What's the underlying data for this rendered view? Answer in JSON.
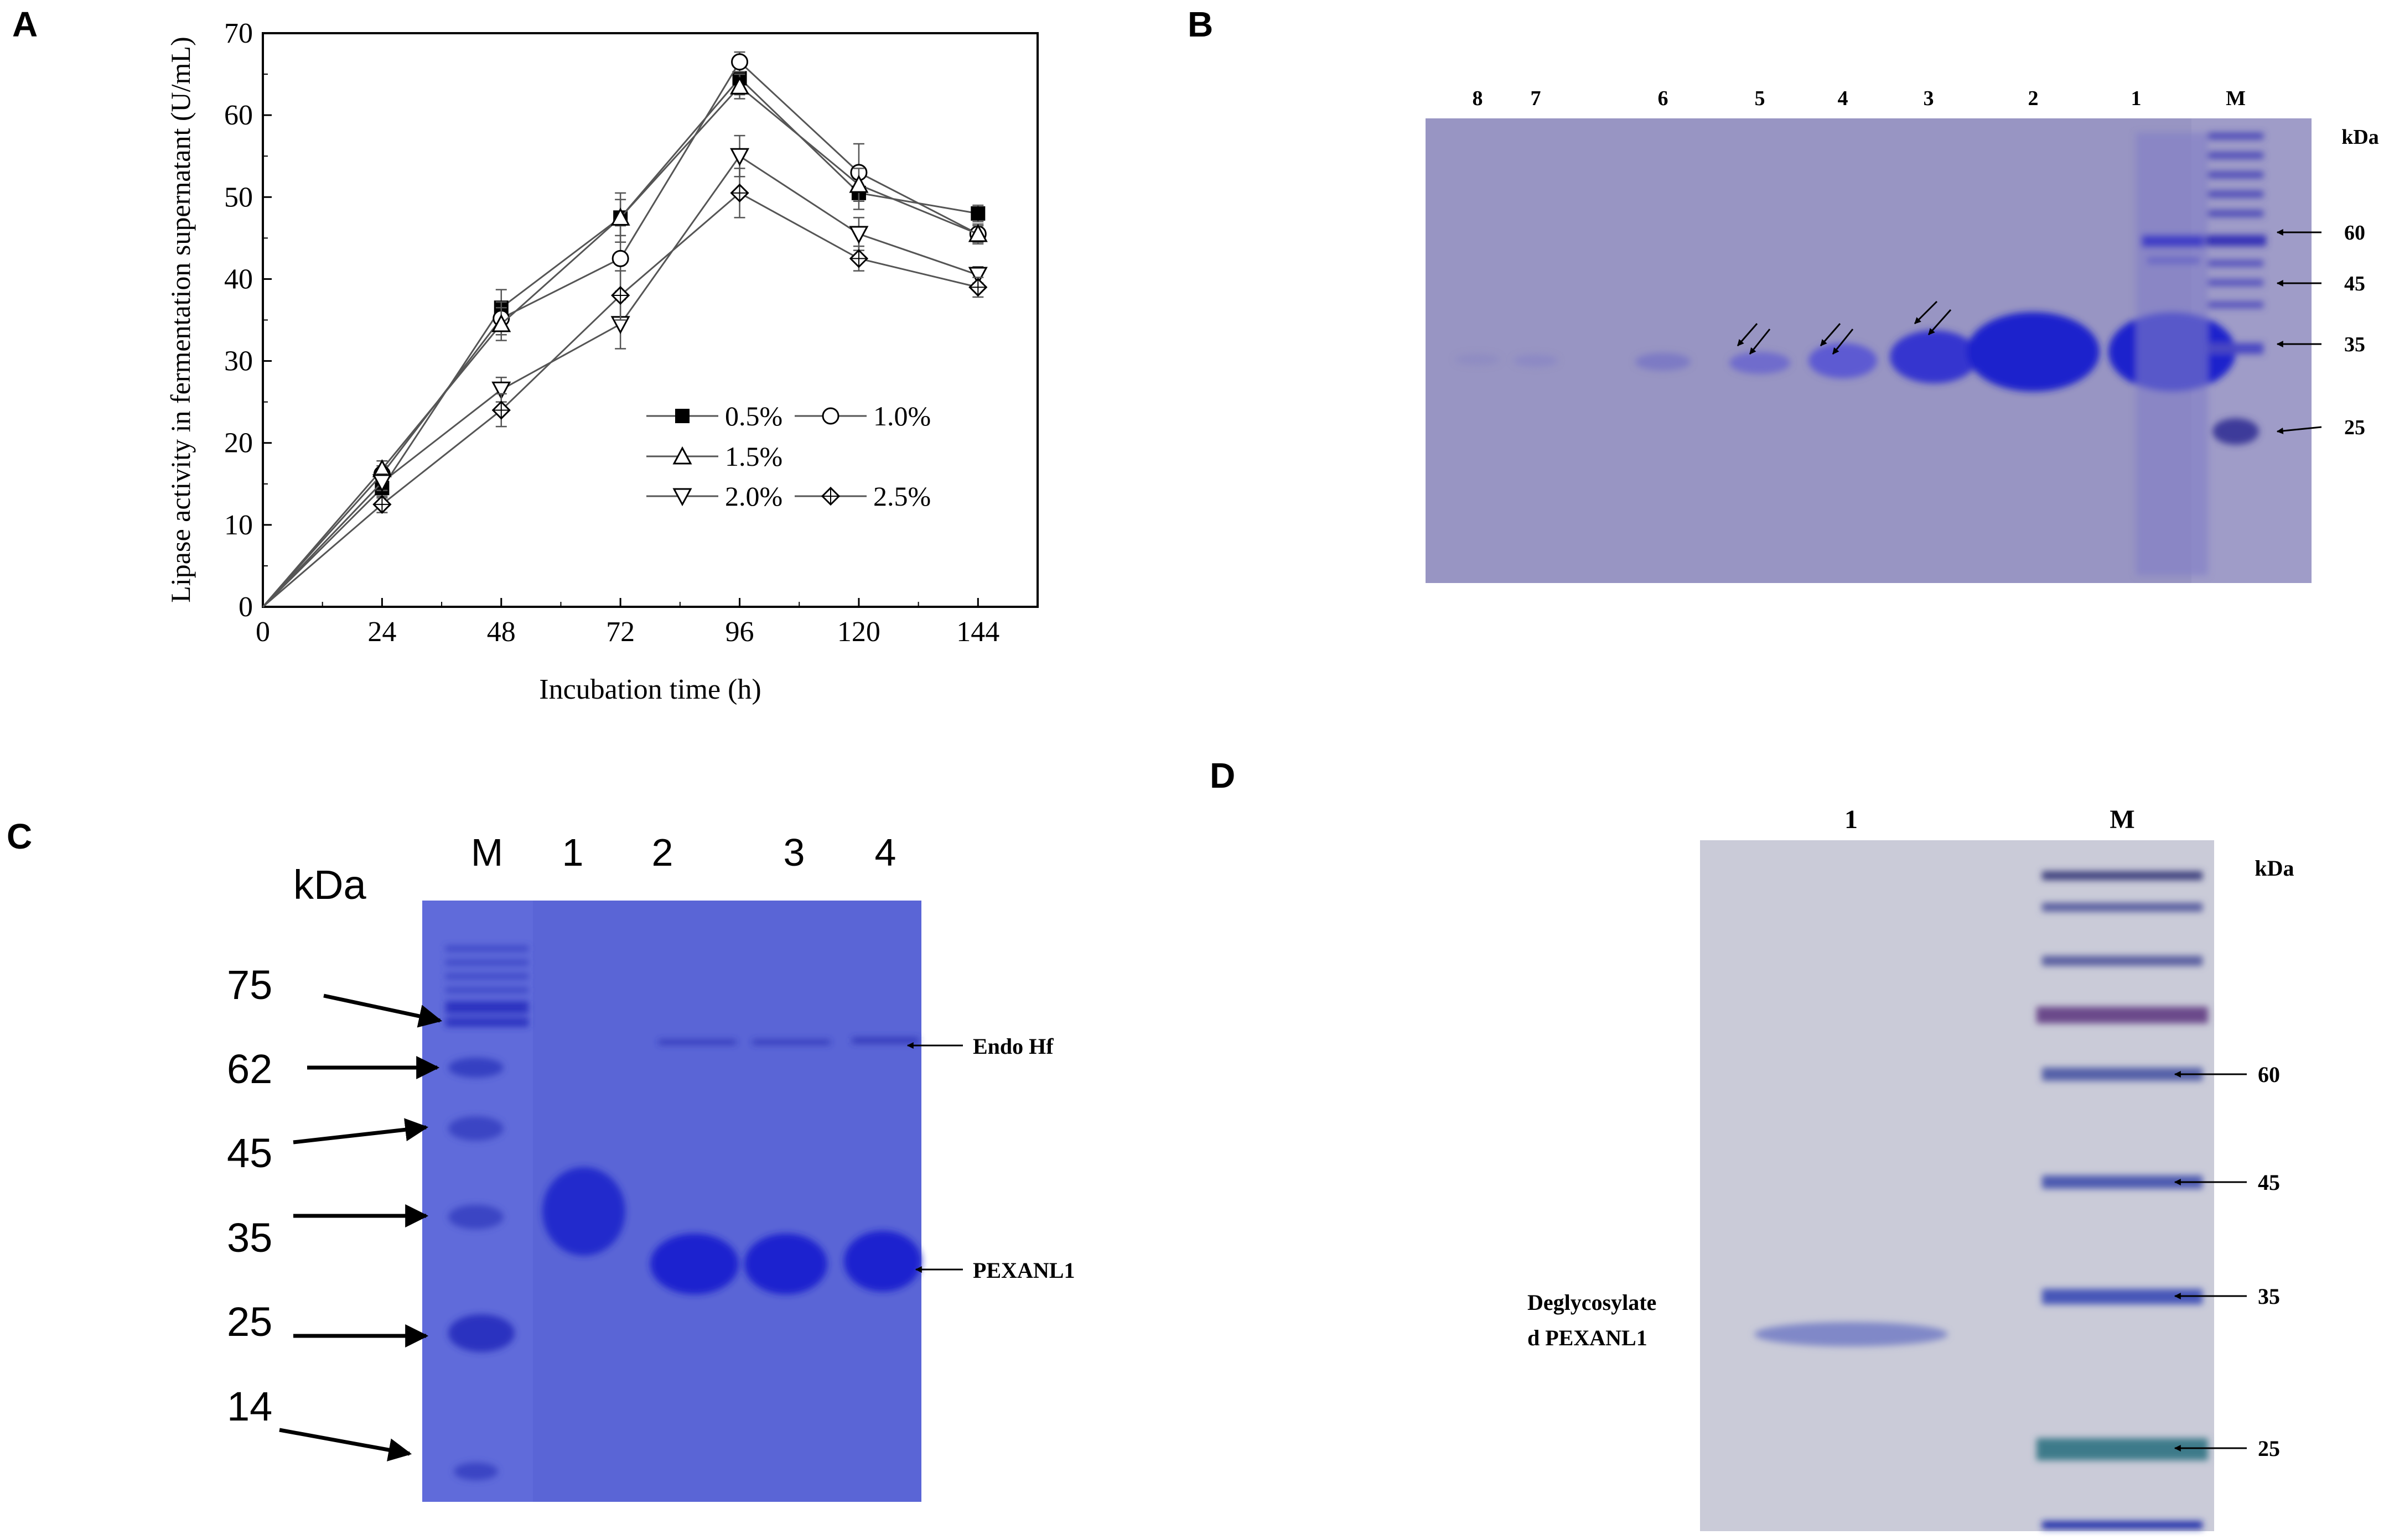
{
  "panels": {
    "A": {
      "letter": "A"
    },
    "B": {
      "letter": "B"
    },
    "C": {
      "letter": "C"
    },
    "D": {
      "letter": "D"
    }
  },
  "chart_data": {
    "type": "line",
    "xlabel": "Incubation time (h)",
    "ylabel": "Lipase activity in fermentation supernatant (U/mL)",
    "x": [
      0,
      24,
      48,
      72,
      96,
      120,
      144
    ],
    "xlim": [
      0,
      156
    ],
    "ylim": [
      0,
      70
    ],
    "x_ticks": [
      "0",
      "24",
      "48",
      "72",
      "96",
      "120",
      "144"
    ],
    "y_ticks": [
      "0",
      "10",
      "20",
      "30",
      "40",
      "50",
      "60",
      "70"
    ],
    "legend_position": "bottom-right inside",
    "series": [
      {
        "name": "0.5%",
        "marker": "filled-square",
        "values": [
          0,
          14.5,
          36.5,
          47.5,
          64.5,
          50.5,
          48
        ],
        "errors": [
          0,
          1.2,
          2.2,
          3.0,
          2.0,
          2.0,
          1.0
        ]
      },
      {
        "name": "1.0%",
        "marker": "open-circle",
        "values": [
          0,
          16.2,
          35.2,
          42.5,
          66.5,
          53,
          45.5
        ],
        "errors": [
          0,
          1.0,
          2.0,
          4.0,
          1.2,
          3.5,
          1.2
        ]
      },
      {
        "name": "1.5%",
        "marker": "open-triangle-up",
        "values": [
          0,
          16.8,
          34.5,
          47.5,
          63.5,
          51.5,
          45.5
        ],
        "errors": [
          0,
          1.0,
          2.0,
          2.2,
          1.5,
          2.0,
          1.0
        ]
      },
      {
        "name": "2.0%",
        "marker": "open-triangle-down",
        "values": [
          0,
          15.2,
          26.5,
          34.5,
          55,
          45.5,
          40.5
        ],
        "errors": [
          0,
          1.0,
          1.5,
          3.0,
          2.5,
          2.0,
          1.0
        ]
      },
      {
        "name": "2.5%",
        "marker": "open-diamond-cross",
        "values": [
          0,
          12.5,
          24,
          38,
          50.5,
          42.5,
          39
        ],
        "errors": [
          0,
          1.0,
          2.0,
          3.0,
          3.0,
          1.5,
          1.2
        ]
      }
    ]
  },
  "gelB": {
    "lane_labels": [
      "8",
      "7",
      "6",
      "5",
      "4",
      "3",
      "2",
      "1",
      "M"
    ],
    "unit": "kDa",
    "markers": [
      "60",
      "45",
      "35",
      "25"
    ]
  },
  "gelC": {
    "lane_labels": [
      "M",
      "1",
      "2",
      "3",
      "4"
    ],
    "unit": "kDa",
    "markers": [
      "75",
      "62",
      "45",
      "35",
      "25",
      "14"
    ],
    "annotations": [
      "Endo Hf",
      "PEXANL1"
    ]
  },
  "gelD": {
    "lane_labels": [
      "1",
      "M"
    ],
    "unit": "kDa",
    "markers": [
      "60",
      "45",
      "35",
      "25"
    ],
    "annotation_line1": "Deglycosylate",
    "annotation_line2": "d PEXANL1"
  },
  "colors": {
    "gel_b_bg": "#9a97c4",
    "gel_c_bg": "#5b66d8",
    "gel_d_bg": "#c9cbd8",
    "band_dark": "#1d22c4",
    "ink": "#000000"
  }
}
